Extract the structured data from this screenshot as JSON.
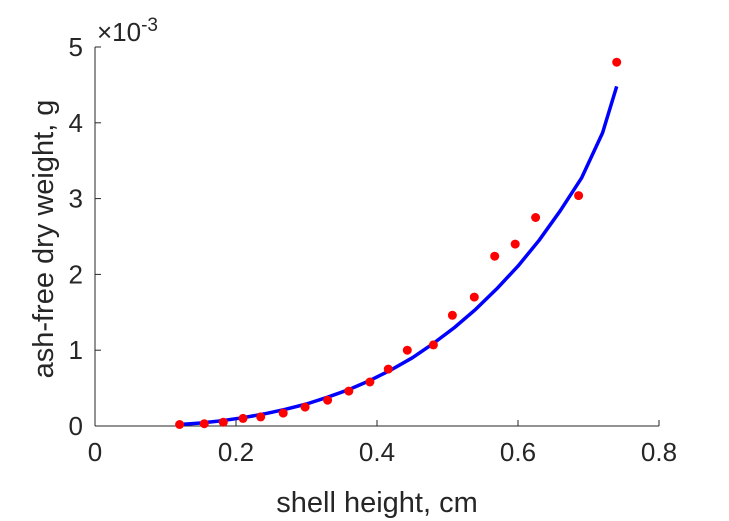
{
  "chart_data": {
    "type": "scatter",
    "xlabel": "shell height, cm",
    "ylabel": "ash-free dry weight, g",
    "xlim": [
      0,
      0.8
    ],
    "ylim": [
      0,
      5
    ],
    "x_ticks": [
      "0",
      "0.2",
      "0.4",
      "0.6",
      "0.8"
    ],
    "y_ticks": [
      "0",
      "1",
      "2",
      "3",
      "4",
      "5"
    ],
    "y_exponent": {
      "base": "×10",
      "power": "-3"
    },
    "y_scale_factor": 0.001,
    "grid": false,
    "series": [
      {
        "kind": "scatter",
        "color": "#ff0000",
        "x": [
          0.12,
          0.155,
          0.182,
          0.21,
          0.235,
          0.267,
          0.298,
          0.33,
          0.36,
          0.39,
          0.416,
          0.443,
          0.48,
          0.507,
          0.538,
          0.567,
          0.596,
          0.625,
          0.686,
          0.74
        ],
        "y": [
          0.02,
          0.03,
          0.05,
          0.1,
          0.12,
          0.17,
          0.25,
          0.34,
          0.46,
          0.58,
          0.75,
          1.0,
          1.07,
          1.46,
          1.7,
          2.24,
          2.4,
          2.75,
          3.04,
          4.8
        ]
      },
      {
        "kind": "line",
        "color": "#0000ff",
        "x": [
          0.12,
          0.15,
          0.18,
          0.21,
          0.24,
          0.27,
          0.3,
          0.33,
          0.36,
          0.39,
          0.42,
          0.45,
          0.48,
          0.51,
          0.54,
          0.57,
          0.6,
          0.63,
          0.66,
          0.69,
          0.72,
          0.74
        ],
        "y": [
          0.02,
          0.04,
          0.07,
          0.11,
          0.16,
          0.22,
          0.29,
          0.38,
          0.48,
          0.6,
          0.74,
          0.9,
          1.09,
          1.3,
          1.54,
          1.81,
          2.11,
          2.45,
          2.84,
          3.27,
          3.87,
          4.48
        ]
      }
    ]
  }
}
